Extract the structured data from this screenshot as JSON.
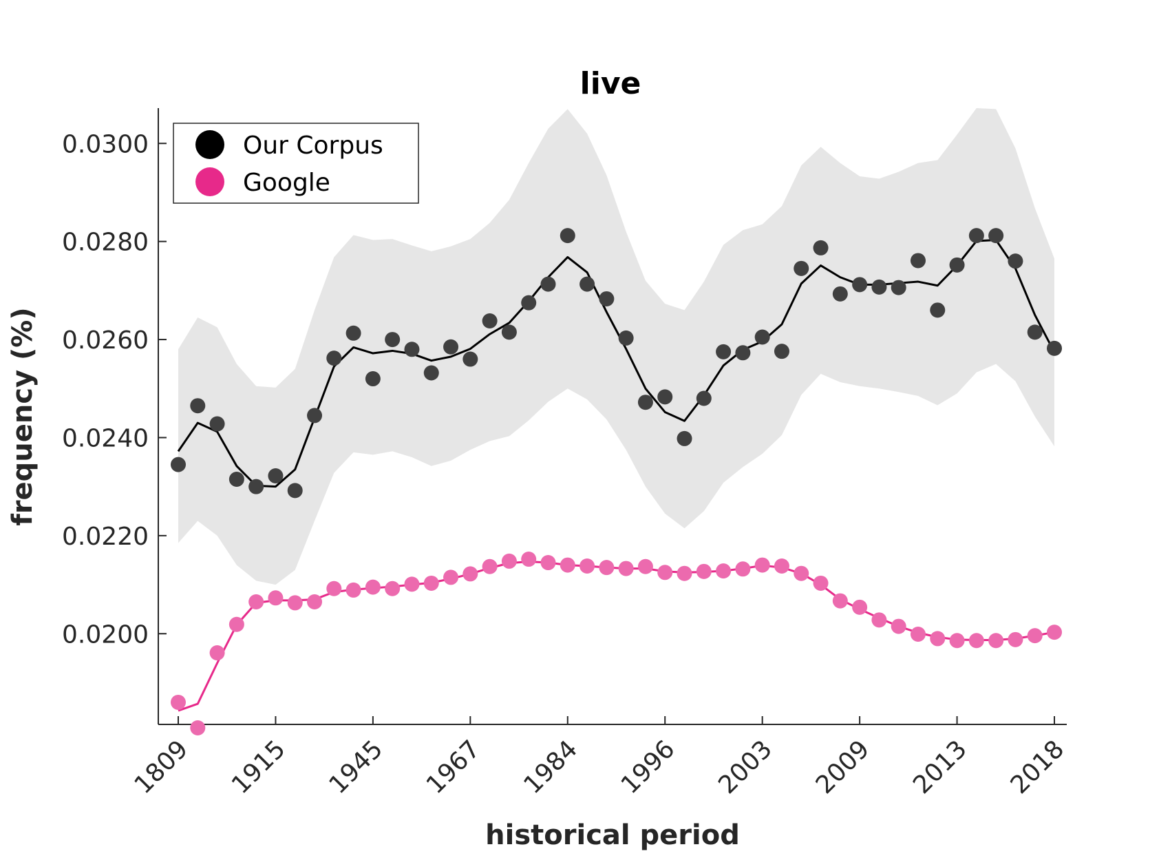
{
  "chart_data": {
    "type": "line",
    "title": "live",
    "xlabel": "historical period",
    "ylabel": "frequency (%)",
    "x_tick_labels": [
      "1809",
      "1915",
      "1945",
      "1967",
      "1984",
      "1996",
      "2003",
      "2009",
      "2013",
      "2018"
    ],
    "x_tick_every": 5,
    "y_ticks": [
      "0.0200",
      "0.0220",
      "0.0240",
      "0.0260",
      "0.0280",
      "0.0300"
    ],
    "ylim": [
      0.01815,
      0.03072
    ],
    "grid": false,
    "legend_position": "top-left",
    "series": [
      {
        "name": "Our Corpus",
        "color": "#000000",
        "marker_color": "#404040",
        "points": [
          0.02345,
          0.02465,
          0.02428,
          0.02315,
          0.023,
          0.02322,
          0.02292,
          0.02445,
          0.02562,
          0.02613,
          0.0252,
          0.026,
          0.0258,
          0.02532,
          0.02585,
          0.0256,
          0.02638,
          0.02615,
          0.02675,
          0.02713,
          0.02812,
          0.02713,
          0.02683,
          0.02603,
          0.02472,
          0.02483,
          0.02398,
          0.0248,
          0.02575,
          0.02573,
          0.02605,
          0.02576,
          0.02745,
          0.02787,
          0.02693,
          0.02712,
          0.02707,
          0.02706,
          0.02761,
          0.0266,
          0.02752,
          0.02812,
          0.02812,
          0.0276,
          0.02615,
          0.02582
        ],
        "smooth": [
          0.02372,
          0.0243,
          0.02412,
          0.02342,
          0.02302,
          0.023,
          0.02335,
          0.0244,
          0.02545,
          0.02584,
          0.02572,
          0.02577,
          0.02571,
          0.02557,
          0.02565,
          0.02581,
          0.02611,
          0.02634,
          0.02678,
          0.02727,
          0.02768,
          0.02737,
          0.02656,
          0.02581,
          0.025,
          0.02452,
          0.02434,
          0.02486,
          0.02547,
          0.02579,
          0.02596,
          0.02631,
          0.02714,
          0.02751,
          0.02727,
          0.02712,
          0.02712,
          0.02715,
          0.02718,
          0.0271,
          0.02751,
          0.02801,
          0.02803,
          0.02745,
          0.0265,
          0.02574
        ],
        "band_upper": [
          0.0258,
          0.02645,
          0.02625,
          0.0255,
          0.02505,
          0.02502,
          0.0254,
          0.0266,
          0.02768,
          0.02813,
          0.02803,
          0.02805,
          0.02792,
          0.0278,
          0.0279,
          0.02805,
          0.02838,
          0.02885,
          0.0296,
          0.0303,
          0.0307,
          0.0302,
          0.02935,
          0.0282,
          0.0272,
          0.02673,
          0.0266,
          0.02718,
          0.02793,
          0.02823,
          0.02835,
          0.02872,
          0.02955,
          0.02993,
          0.0296,
          0.02933,
          0.02928,
          0.02942,
          0.0296,
          0.02966,
          0.03018,
          0.03072,
          0.0307,
          0.0299,
          0.02868,
          0.02765
        ],
        "band_lower": [
          0.02185,
          0.0223,
          0.022,
          0.0214,
          0.02108,
          0.021,
          0.0213,
          0.0223,
          0.02328,
          0.0237,
          0.02365,
          0.02372,
          0.0236,
          0.02342,
          0.02353,
          0.02375,
          0.02393,
          0.02403,
          0.02435,
          0.02473,
          0.025,
          0.02478,
          0.02437,
          0.02375,
          0.023,
          0.02245,
          0.02215,
          0.0225,
          0.02308,
          0.0234,
          0.02367,
          0.02405,
          0.02487,
          0.0253,
          0.02513,
          0.02505,
          0.025,
          0.02493,
          0.02485,
          0.02466,
          0.0249,
          0.02533,
          0.0255,
          0.02515,
          0.02443,
          0.02382
        ]
      },
      {
        "name": "Google",
        "color": "#e7298a",
        "marker_color": "#ec6aae",
        "points": [
          0.0186,
          0.01808,
          0.01961,
          0.02019,
          0.02065,
          0.02073,
          0.02063,
          0.02065,
          0.02092,
          0.02089,
          0.02095,
          0.02092,
          0.02101,
          0.02103,
          0.02115,
          0.02122,
          0.02137,
          0.02148,
          0.02152,
          0.02145,
          0.0214,
          0.02138,
          0.02135,
          0.02133,
          0.02137,
          0.02125,
          0.02123,
          0.02127,
          0.02128,
          0.02132,
          0.0214,
          0.02138,
          0.02123,
          0.02103,
          0.02067,
          0.02054,
          0.02028,
          0.02015,
          0.01999,
          0.0199,
          0.01986,
          0.01986,
          0.01986,
          0.01988,
          0.01996,
          0.02003
        ],
        "smooth": [
          0.01843,
          0.01857,
          0.0194,
          0.02018,
          0.02063,
          0.02068,
          0.02068,
          0.0207,
          0.02085,
          0.0209,
          0.02093,
          0.02096,
          0.021,
          0.02104,
          0.02112,
          0.02122,
          0.02134,
          0.02144,
          0.02147,
          0.02145,
          0.0214,
          0.02138,
          0.02135,
          0.02133,
          0.02133,
          0.02127,
          0.02125,
          0.02126,
          0.02128,
          0.02133,
          0.02139,
          0.02135,
          0.02123,
          0.021,
          0.0207,
          0.0205,
          0.02032,
          0.02015,
          0.02002,
          0.01993,
          0.01988,
          0.01987,
          0.01987,
          0.0199,
          0.01996,
          0.02003
        ]
      }
    ]
  }
}
